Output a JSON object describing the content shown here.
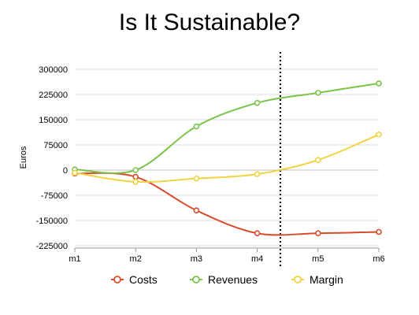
{
  "chart_data": {
    "type": "line",
    "title": "Is It Sustainable?",
    "xlabel": "",
    "ylabel": "Euros",
    "categories": [
      "m1",
      "m2",
      "m3",
      "m4",
      "m5",
      "m6"
    ],
    "y_ticks": [
      "300000",
      "225000",
      "150000",
      "75000",
      "0",
      "-75000",
      "-150000",
      "-225000"
    ],
    "y_tick_values": [
      300000,
      225000,
      150000,
      75000,
      0,
      -75000,
      -150000,
      -225000
    ],
    "ylim": [
      -225000,
      300000
    ],
    "grid": true,
    "legend_position": "bottom",
    "divider_between": [
      "m4",
      "m5"
    ],
    "series": [
      {
        "name": "Costs",
        "color": "#d94b2b",
        "values": [
          -10000,
          -20000,
          -120000,
          -188000,
          -188000,
          -184000
        ]
      },
      {
        "name": "Revenues",
        "color": "#7cc34a",
        "values": [
          2000,
          0,
          130000,
          200000,
          230000,
          258000
        ]
      },
      {
        "name": "Margin",
        "color": "#f0d33f",
        "values": [
          -8000,
          -35000,
          -25000,
          -12000,
          30000,
          106000
        ]
      }
    ]
  }
}
